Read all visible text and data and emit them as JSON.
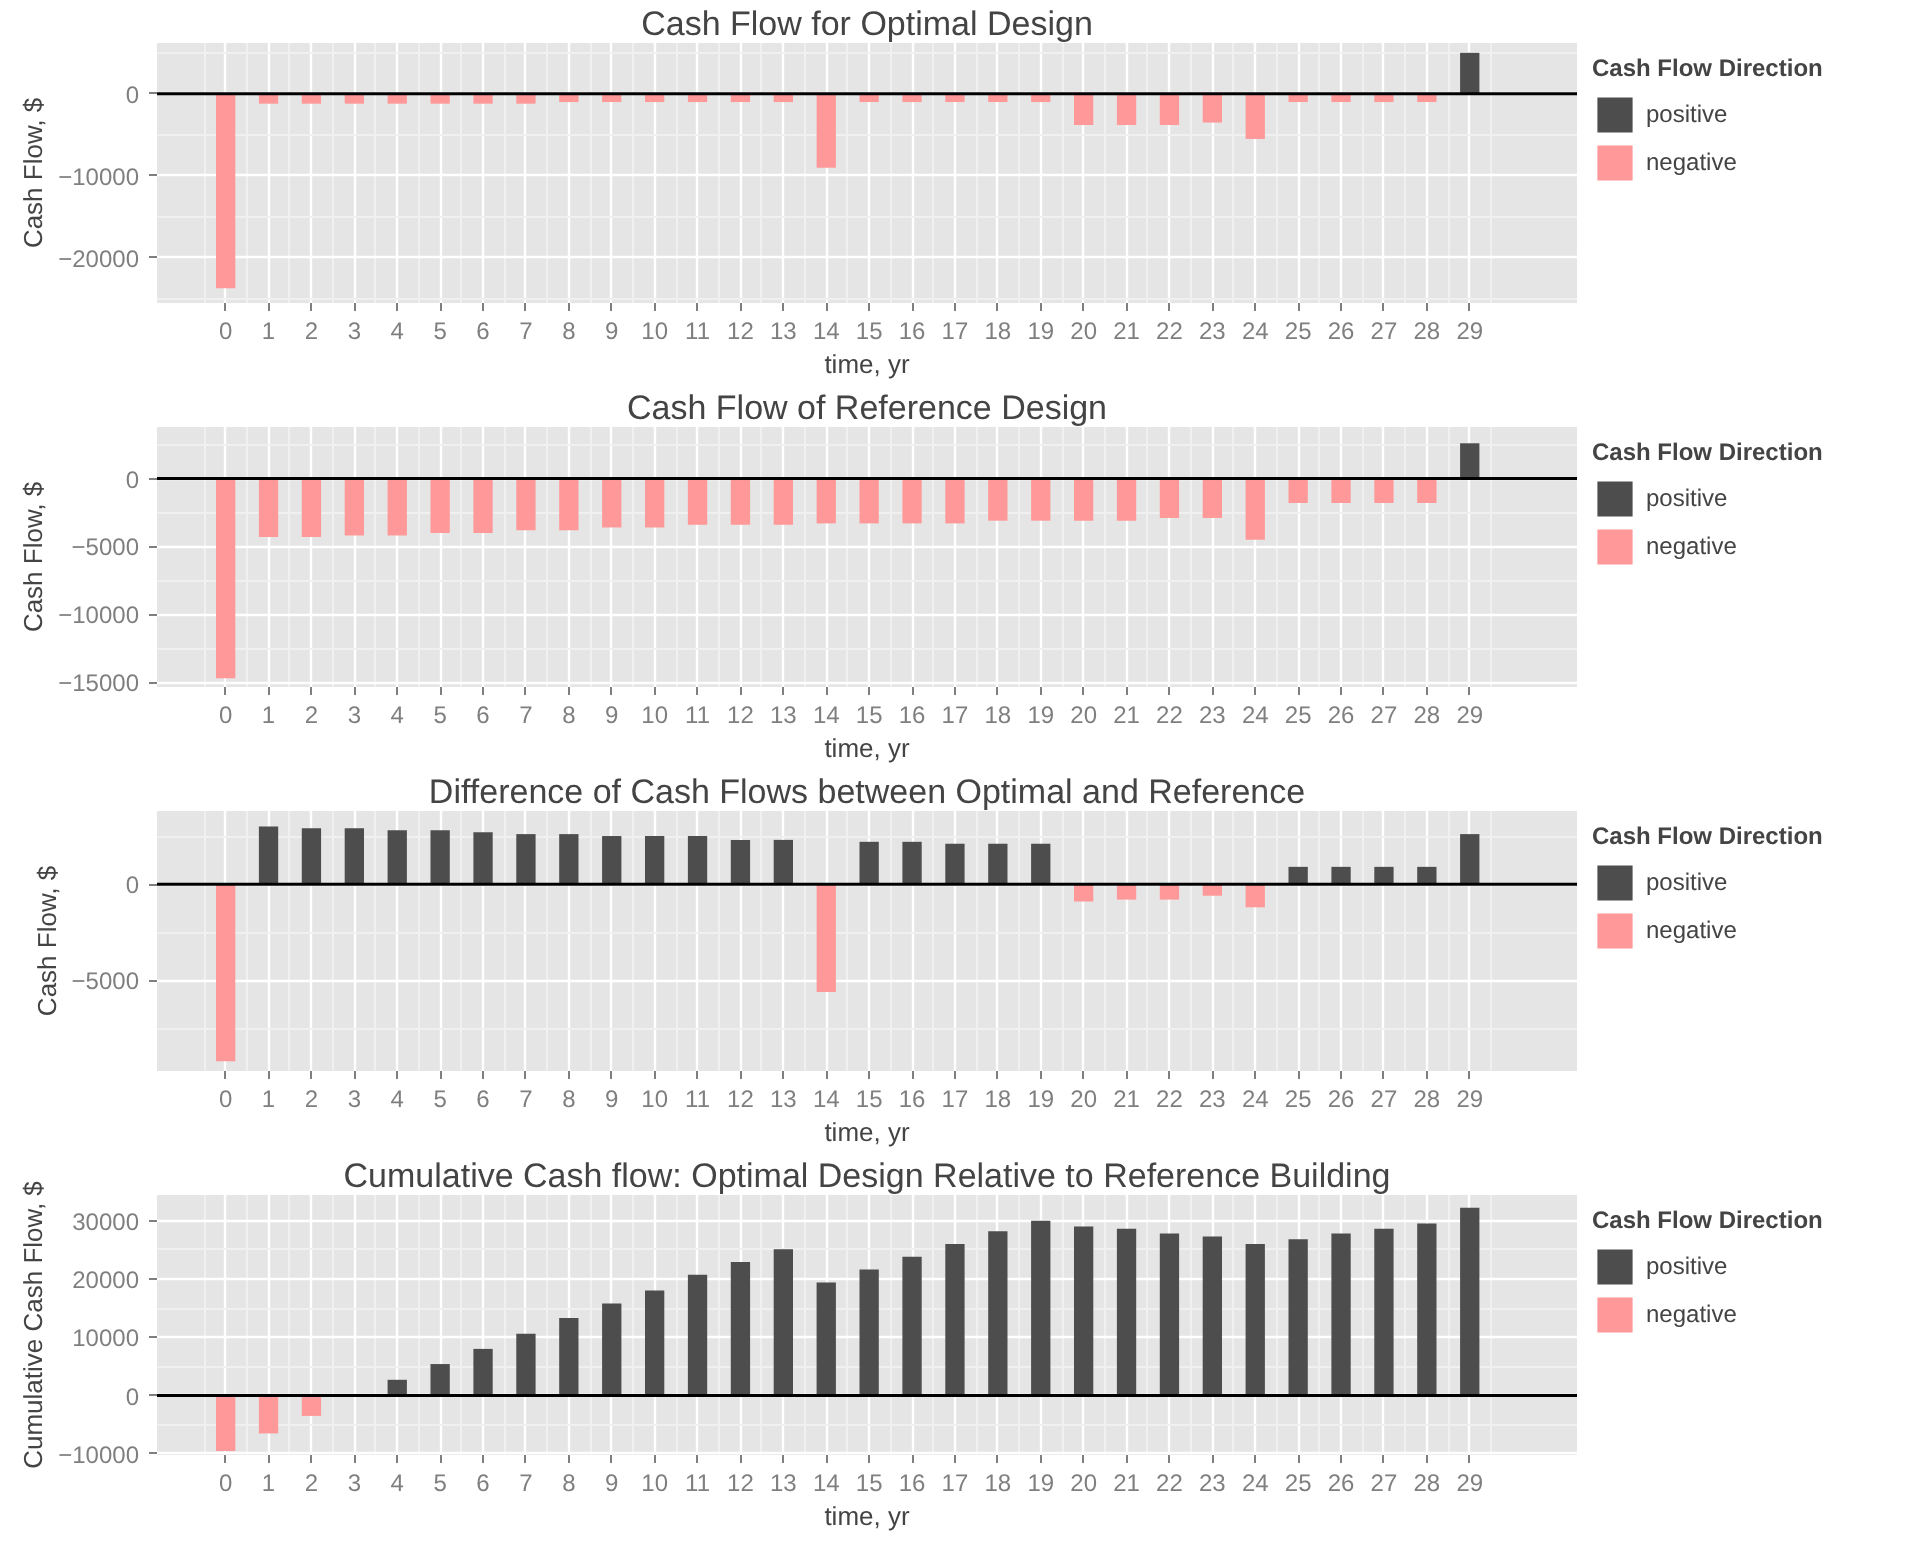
{
  "chart_data": [
    {
      "type": "bar",
      "title": "Cash Flow for Optimal Design",
      "xlabel": "time, yr",
      "ylabel": "Cash Flow, $",
      "legend_title": "Cash Flow Direction",
      "legend": "right",
      "grid": true,
      "x": [
        0,
        1,
        2,
        3,
        4,
        5,
        6,
        7,
        8,
        9,
        10,
        11,
        12,
        13,
        14,
        15,
        16,
        17,
        18,
        19,
        20,
        21,
        22,
        23,
        24,
        25,
        26,
        27,
        28,
        29
      ],
      "xlim": [
        -1.6,
        31.5
      ],
      "xticks": [
        0,
        1,
        2,
        3,
        4,
        5,
        6,
        7,
        8,
        9,
        10,
        11,
        12,
        13,
        14,
        15,
        16,
        17,
        18,
        19,
        20,
        21,
        22,
        23,
        24,
        25,
        26,
        27,
        28,
        29
      ],
      "ylim": [
        -25500,
        6200
      ],
      "yticks": [
        -20000,
        -10000,
        0
      ],
      "ref_lines": [
        {
          "axis": "y",
          "value": 0,
          "color": "#000000"
        }
      ],
      "series": [
        {
          "name": "positive",
          "color": "#4d4d4d",
          "values": [
            null,
            null,
            null,
            null,
            null,
            null,
            null,
            null,
            null,
            null,
            null,
            null,
            null,
            null,
            null,
            null,
            null,
            null,
            null,
            null,
            null,
            null,
            null,
            null,
            null,
            null,
            null,
            null,
            null,
            5000
          ]
        },
        {
          "name": "negative",
          "color": "#ff9999",
          "values": [
            -23700,
            -1200,
            -1200,
            -1200,
            -1200,
            -1200,
            -1200,
            -1200,
            -1000,
            -1000,
            -1000,
            -1000,
            -1000,
            -1000,
            -9000,
            -1000,
            -1000,
            -1000,
            -1000,
            -1000,
            -3800,
            -3800,
            -3800,
            -3500,
            -5500,
            -1000,
            -1000,
            -1000,
            -1000,
            null
          ]
        }
      ]
    },
    {
      "type": "bar",
      "title": "Cash Flow of Reference Design",
      "xlabel": "time, yr",
      "ylabel": "Cash Flow, $",
      "legend_title": "Cash Flow Direction",
      "legend": "right",
      "grid": true,
      "x": [
        0,
        1,
        2,
        3,
        4,
        5,
        6,
        7,
        8,
        9,
        10,
        11,
        12,
        13,
        14,
        15,
        16,
        17,
        18,
        19,
        20,
        21,
        22,
        23,
        24,
        25,
        26,
        27,
        28,
        29
      ],
      "xlim": [
        -1.6,
        31.5
      ],
      "xticks": [
        0,
        1,
        2,
        3,
        4,
        5,
        6,
        7,
        8,
        9,
        10,
        11,
        12,
        13,
        14,
        15,
        16,
        17,
        18,
        19,
        20,
        21,
        22,
        23,
        24,
        25,
        26,
        27,
        28,
        29
      ],
      "ylim": [
        -15350,
        3800
      ],
      "yticks": [
        -15000,
        -10000,
        -5000,
        0
      ],
      "ref_lines": [
        {
          "axis": "y",
          "value": 0,
          "color": "#000000"
        }
      ],
      "series": [
        {
          "name": "positive",
          "color": "#4d4d4d",
          "values": [
            null,
            null,
            null,
            null,
            null,
            null,
            null,
            null,
            null,
            null,
            null,
            null,
            null,
            null,
            null,
            null,
            null,
            null,
            null,
            null,
            null,
            null,
            null,
            null,
            null,
            null,
            null,
            null,
            null,
            2600
          ]
        },
        {
          "name": "negative",
          "color": "#ff9999",
          "values": [
            -14700,
            -4300,
            -4300,
            -4200,
            -4200,
            -4000,
            -4000,
            -3800,
            -3800,
            -3600,
            -3600,
            -3400,
            -3400,
            -3400,
            -3300,
            -3300,
            -3300,
            -3300,
            -3100,
            -3100,
            -3100,
            -3100,
            -2900,
            -2900,
            -4500,
            -1800,
            -1800,
            -1800,
            -1800,
            null
          ]
        }
      ]
    },
    {
      "type": "bar",
      "title": "Difference of Cash Flows between Optimal and Reference",
      "xlabel": "time, yr",
      "ylabel": "Cash Flow, $",
      "legend_title": "Cash Flow Direction",
      "legend": "right",
      "grid": true,
      "x": [
        0,
        1,
        2,
        3,
        4,
        5,
        6,
        7,
        8,
        9,
        10,
        11,
        12,
        13,
        14,
        15,
        16,
        17,
        18,
        19,
        20,
        21,
        22,
        23,
        24,
        25,
        26,
        27,
        28,
        29
      ],
      "xlim": [
        -1.6,
        31.5
      ],
      "xticks": [
        0,
        1,
        2,
        3,
        4,
        5,
        6,
        7,
        8,
        9,
        10,
        11,
        12,
        13,
        14,
        15,
        16,
        17,
        18,
        19,
        20,
        21,
        22,
        23,
        24,
        25,
        26,
        27,
        28,
        29
      ],
      "ylim": [
        -9700,
        3800
      ],
      "yticks": [
        -5000,
        0
      ],
      "ref_lines": [
        {
          "axis": "y",
          "value": 0,
          "color": "#000000"
        }
      ],
      "series": [
        {
          "name": "positive",
          "color": "#4d4d4d",
          "values": [
            null,
            3000,
            2900,
            2900,
            2800,
            2800,
            2700,
            2600,
            2600,
            2500,
            2500,
            2500,
            2300,
            2300,
            null,
            2200,
            2200,
            2100,
            2100,
            2100,
            null,
            null,
            null,
            null,
            null,
            900,
            900,
            900,
            900,
            2600
          ]
        },
        {
          "name": "negative",
          "color": "#ff9999",
          "values": [
            -9200,
            null,
            null,
            null,
            null,
            null,
            null,
            null,
            null,
            null,
            null,
            null,
            null,
            null,
            -5600,
            null,
            null,
            null,
            null,
            null,
            -900,
            -800,
            -800,
            -600,
            -1200,
            null,
            null,
            null,
            null,
            null
          ]
        }
      ]
    },
    {
      "type": "bar",
      "title": "Cumulative Cash flow: Optimal Design Relative to Reference Building",
      "xlabel": "time, yr",
      "ylabel": "Cumulative Cash Flow, $",
      "legend_title": "Cash Flow Direction",
      "legend": "right",
      "grid": true,
      "x": [
        0,
        1,
        2,
        3,
        4,
        5,
        6,
        7,
        8,
        9,
        10,
        11,
        12,
        13,
        14,
        15,
        16,
        17,
        18,
        19,
        20,
        21,
        22,
        23,
        24,
        25,
        26,
        27,
        28,
        29
      ],
      "xlim": [
        -1.6,
        31.5
      ],
      "xticks": [
        0,
        1,
        2,
        3,
        4,
        5,
        6,
        7,
        8,
        9,
        10,
        11,
        12,
        13,
        14,
        15,
        16,
        17,
        18,
        19,
        20,
        21,
        22,
        23,
        24,
        25,
        26,
        27,
        28,
        29
      ],
      "ylim": [
        -10200,
        34400
      ],
      "yticks": [
        -10000,
        0,
        10000,
        20000,
        30000
      ],
      "ref_lines": [
        {
          "axis": "y",
          "value": 0,
          "color": "#000000"
        }
      ],
      "series": [
        {
          "name": "positive",
          "color": "#4d4d4d",
          "values": [
            null,
            null,
            null,
            0,
            2700,
            5400,
            8000,
            10600,
            13300,
            15800,
            18000,
            20700,
            22900,
            25100,
            19400,
            21600,
            23800,
            26000,
            28200,
            30000,
            29000,
            28600,
            27800,
            27300,
            26000,
            26800,
            27800,
            28600,
            29500,
            32200
          ]
        },
        {
          "name": "negative",
          "color": "#ff9999",
          "values": [
            -9500,
            -6500,
            -3500,
            null,
            null,
            null,
            null,
            null,
            null,
            null,
            null,
            null,
            null,
            null,
            null,
            null,
            null,
            null,
            null,
            null,
            null,
            null,
            null,
            null,
            null,
            null,
            null,
            null,
            null,
            null
          ]
        }
      ]
    }
  ]
}
